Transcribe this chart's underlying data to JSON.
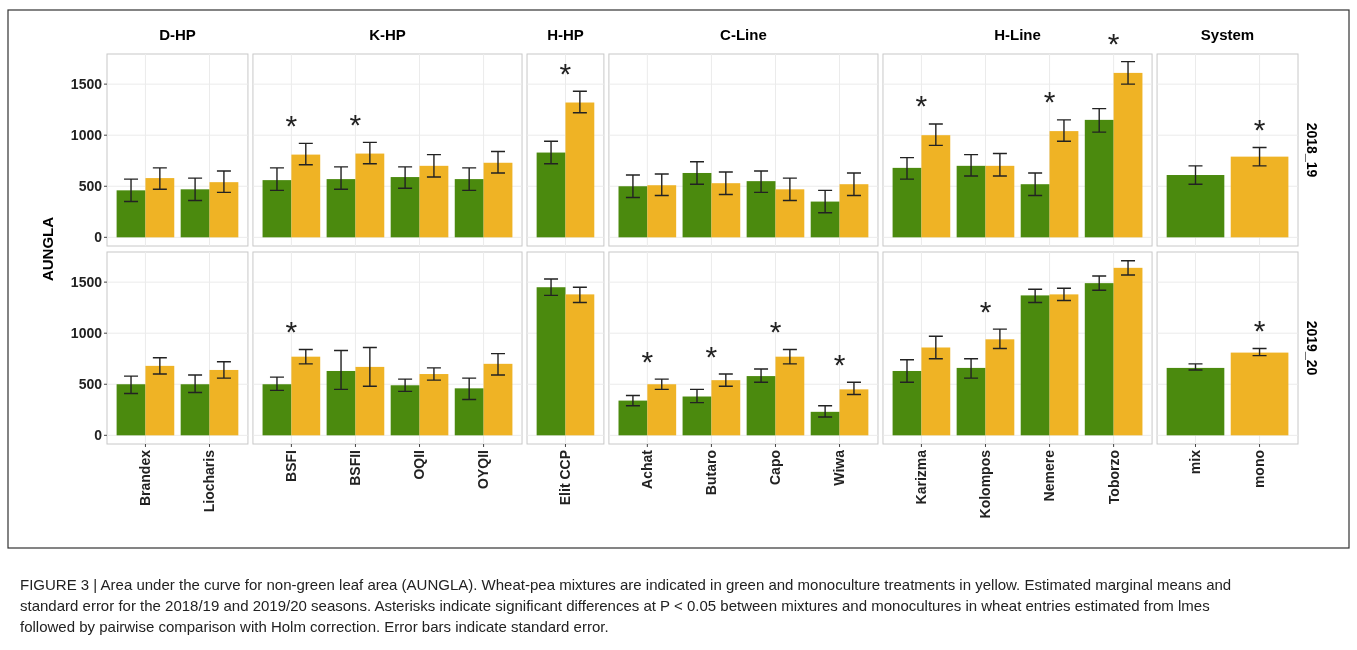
{
  "chart_data": [
    {
      "type": "bar",
      "title": "D-HP",
      "ylabel": "AUNGLA",
      "categories": [
        "Brandex",
        "Liocharis"
      ],
      "series": [
        {
          "color": "#4b8a0e",
          "values": [
            460,
            470
          ],
          "errors": [
            [
              350,
              570
            ],
            [
              360,
              580
            ]
          ]
        },
        {
          "color": "#efb325",
          "values": [
            580,
            540
          ],
          "errors": [
            [
              470,
              680
            ],
            [
              440,
              650
            ]
          ]
        }
      ],
      "ylim": [
        -85,
        1795
      ],
      "yticks": [
        0,
        500,
        1000,
        1500
      ],
      "grid": true,
      "tick_labels": "y",
      "annotations": [
        "FIGURE 3 | Area under the curve for non-green leaf area (AUNGLA). Wheat-pea mixtures are indicated in green and monoculture treatments in yellow. Estimated marginal means and standard error for the 2018/19 and 2019/20 seasons. Asterisks indicate significant differences at P < 0.05 between mixtures and monocultures in wheat entries estimated from lmes followed by pairwise comparison with Holm correction. Error bars indicate standard error."
      ]
    },
    {
      "type": "bar",
      "title": "K-HP",
      "categories": [
        "BSFI",
        "BSFII",
        "OQII",
        "OYQII"
      ],
      "series": [
        {
          "color": "#4b8a0e",
          "values": [
            560,
            570,
            590,
            570
          ],
          "errors": [
            [
              460,
              680
            ],
            [
              470,
              690
            ],
            [
              480,
              690
            ],
            [
              460,
              680
            ]
          ]
        },
        {
          "color": "#efb325",
          "values": [
            810,
            820,
            700,
            730
          ],
          "errors": [
            [
              710,
              920
            ],
            [
              720,
              930
            ],
            [
              590,
              810
            ],
            [
              630,
              840
            ]
          ]
        }
      ],
      "ylim": [
        -85,
        1795
      ],
      "yticks": [
        0,
        500,
        1000,
        1500
      ],
      "grid": true,
      "tick_labels": false,
      "annotations": [
        {
          "text": "*",
          "x": "BSFI",
          "y": 810
        },
        {
          "text": "*",
          "x": "BSFII",
          "y": 820
        }
      ]
    },
    {
      "type": "bar",
      "title": "H-HP",
      "categories": [
        "Elit CCP"
      ],
      "series": [
        {
          "color": "#4b8a0e",
          "values": [
            830
          ],
          "errors": [
            [
              720,
              940
            ]
          ]
        },
        {
          "color": "#efb325",
          "values": [
            1320
          ],
          "errors": [
            [
              1220,
              1430
            ]
          ]
        }
      ],
      "ylim": [
        -85,
        1795
      ],
      "yticks": [
        0,
        500,
        1000,
        1500
      ],
      "grid": true,
      "tick_labels": false,
      "annotations": [
        {
          "text": "*",
          "x": "Elit CCP",
          "y": 1320
        }
      ]
    },
    {
      "type": "bar",
      "title": "C-Line",
      "categories": [
        "Achat",
        "Butaro",
        "Capo",
        "Wiwa"
      ],
      "series": [
        {
          "color": "#4b8a0e",
          "values": [
            500,
            630,
            550,
            350
          ],
          "errors": [
            [
              390,
              610
            ],
            [
              520,
              740
            ],
            [
              440,
              650
            ],
            [
              240,
              460
            ]
          ]
        },
        {
          "color": "#efb325",
          "values": [
            510,
            530,
            470,
            520
          ],
          "errors": [
            [
              410,
              620
            ],
            [
              420,
              640
            ],
            [
              360,
              580
            ],
            [
              410,
              630
            ]
          ]
        }
      ],
      "ylim": [
        -85,
        1795
      ],
      "yticks": [
        0,
        500,
        1000,
        1500
      ],
      "grid": true,
      "tick_labels": false
    },
    {
      "type": "bar",
      "title": "H-Line",
      "categories": [
        "Karizma",
        "Kolompos",
        "Nemere",
        "Toborzo"
      ],
      "series": [
        {
          "color": "#4b8a0e",
          "values": [
            680,
            700,
            520,
            1150
          ],
          "errors": [
            [
              570,
              780
            ],
            [
              600,
              810
            ],
            [
              410,
              630
            ],
            [
              1030,
              1260
            ]
          ]
        },
        {
          "color": "#efb325",
          "values": [
            1000,
            700,
            1040,
            1610
          ],
          "errors": [
            [
              900,
              1110
            ],
            [
              600,
              820
            ],
            [
              940,
              1150
            ],
            [
              1500,
              1720
            ]
          ]
        }
      ],
      "ylim": [
        -85,
        1795
      ],
      "yticks": [
        0,
        500,
        1000,
        1500
      ],
      "grid": true,
      "tick_labels": false,
      "annotations": [
        {
          "text": "*",
          "x": "Karizma",
          "y": 1000
        },
        {
          "text": "*",
          "x": "Nemere",
          "y": 1040
        },
        {
          "text": "*",
          "x": "Toborzo",
          "y": 1610
        }
      ]
    },
    {
      "type": "bar",
      "title": "System",
      "y2label": "2018_19",
      "categories": [
        "mix",
        "mono"
      ],
      "values": [
        610,
        790
      ],
      "colors": [
        "#4b8a0e",
        "#efb325"
      ],
      "errors": [
        [
          520,
          700
        ],
        [
          700,
          880
        ]
      ],
      "ylim": [
        -85,
        1795
      ],
      "yticks": [
        0,
        500,
        1000,
        1500
      ],
      "grid": true,
      "tick_labels": false,
      "annotations": [
        {
          "text": "*",
          "x": "mono",
          "y": 790
        }
      ]
    },
    {
      "type": "bar",
      "categories": [
        "Brandex",
        "Liocharis"
      ],
      "series": [
        {
          "color": "#4b8a0e",
          "values": [
            500,
            500
          ],
          "errors": [
            [
              410,
              580
            ],
            [
              420,
              590
            ]
          ]
        },
        {
          "color": "#efb325",
          "values": [
            680,
            640
          ],
          "errors": [
            [
              600,
              760
            ],
            [
              560,
              720
            ]
          ]
        }
      ],
      "ylim": [
        -85,
        1795
      ],
      "yticks": [
        0,
        500,
        1000,
        1500
      ],
      "grid": true
    },
    {
      "type": "bar",
      "categories": [
        "BSFI",
        "BSFII",
        "OQII",
        "OYQII"
      ],
      "series": [
        {
          "color": "#4b8a0e",
          "values": [
            500,
            630,
            490,
            460
          ],
          "errors": [
            [
              440,
              570
            ],
            [
              450,
              830
            ],
            [
              430,
              550
            ],
            [
              350,
              560
            ]
          ]
        },
        {
          "color": "#efb325",
          "values": [
            770,
            670,
            600,
            700
          ],
          "errors": [
            [
              700,
              840
            ],
            [
              480,
              860
            ],
            [
              540,
              660
            ],
            [
              590,
              800
            ]
          ]
        }
      ],
      "ylim": [
        -85,
        1795
      ],
      "yticks": [
        0,
        500,
        1000,
        1500
      ],
      "grid": true,
      "tick_labels": "x",
      "annotations": [
        {
          "text": "*",
          "x": "BSFI",
          "y": 770
        }
      ]
    },
    {
      "type": "bar",
      "categories": [
        "Elit CCP"
      ],
      "series": [
        {
          "color": "#4b8a0e",
          "values": [
            1450
          ],
          "errors": [
            [
              1370,
              1530
            ]
          ]
        },
        {
          "color": "#efb325",
          "values": [
            1380
          ],
          "errors": [
            [
              1300,
              1450
            ]
          ]
        }
      ],
      "ylim": [
        -85,
        1795
      ],
      "yticks": [
        0,
        500,
        1000,
        1500
      ],
      "grid": true,
      "tick_labels": "x"
    },
    {
      "type": "bar",
      "categories": [
        "Achat",
        "Butaro",
        "Capo",
        "Wiwa"
      ],
      "series": [
        {
          "color": "#4b8a0e",
          "values": [
            340,
            380,
            580,
            230
          ],
          "errors": [
            [
              290,
              390
            ],
            [
              320,
              450
            ],
            [
              520,
              650
            ],
            [
              180,
              290
            ]
          ]
        },
        {
          "color": "#efb325",
          "values": [
            500,
            540,
            770,
            450
          ],
          "errors": [
            [
              450,
              550
            ],
            [
              480,
              600
            ],
            [
              700,
              840
            ],
            [
              400,
              520
            ]
          ]
        }
      ],
      "ylim": [
        -85,
        1795
      ],
      "yticks": [
        0,
        500,
        1000,
        1500
      ],
      "grid": true,
      "tick_labels": "x",
      "annotations": [
        {
          "text": "*",
          "x": "Achat",
          "y": 500
        },
        {
          "text": "*",
          "x": "Butaro",
          "y": 540
        },
        {
          "text": "*",
          "x": "Capo",
          "y": 770
        },
        {
          "text": "*",
          "x": "Wiwa",
          "y": 450
        }
      ]
    },
    {
      "type": "bar",
      "categories": [
        "Karizma",
        "Kolompos",
        "Nemere",
        "Toborzo"
      ],
      "series": [
        {
          "color": "#4b8a0e",
          "values": [
            630,
            660,
            1370,
            1490
          ],
          "errors": [
            [
              520,
              740
            ],
            [
              560,
              750
            ],
            [
              1300,
              1430
            ],
            [
              1420,
              1560
            ]
          ]
        },
        {
          "color": "#efb325",
          "values": [
            860,
            940,
            1380,
            1640
          ],
          "errors": [
            [
              750,
              970
            ],
            [
              850,
              1040
            ],
            [
              1320,
              1440
            ],
            [
              1570,
              1710
            ]
          ]
        }
      ],
      "ylim": [
        -85,
        1795
      ],
      "yticks": [
        0,
        500,
        1000,
        1500
      ],
      "grid": true,
      "tick_labels": "x",
      "annotations": [
        {
          "text": "*",
          "x": "Kolompos",
          "y": 940
        }
      ]
    },
    {
      "type": "bar",
      "y2label": "2019_20",
      "categories": [
        "mix",
        "mono"
      ],
      "values": [
        660,
        810
      ],
      "colors": [
        "#4b8a0e",
        "#efb325"
      ],
      "errors": [
        [
          640,
          700
        ],
        [
          780,
          850
        ]
      ],
      "ylim": [
        -85,
        1795
      ],
      "yticks": [
        0,
        500,
        1000,
        1500
      ],
      "grid": true,
      "tick_labels": "x",
      "annotations": [
        {
          "text": "*",
          "x": "mono",
          "y": 810
        }
      ]
    }
  ]
}
